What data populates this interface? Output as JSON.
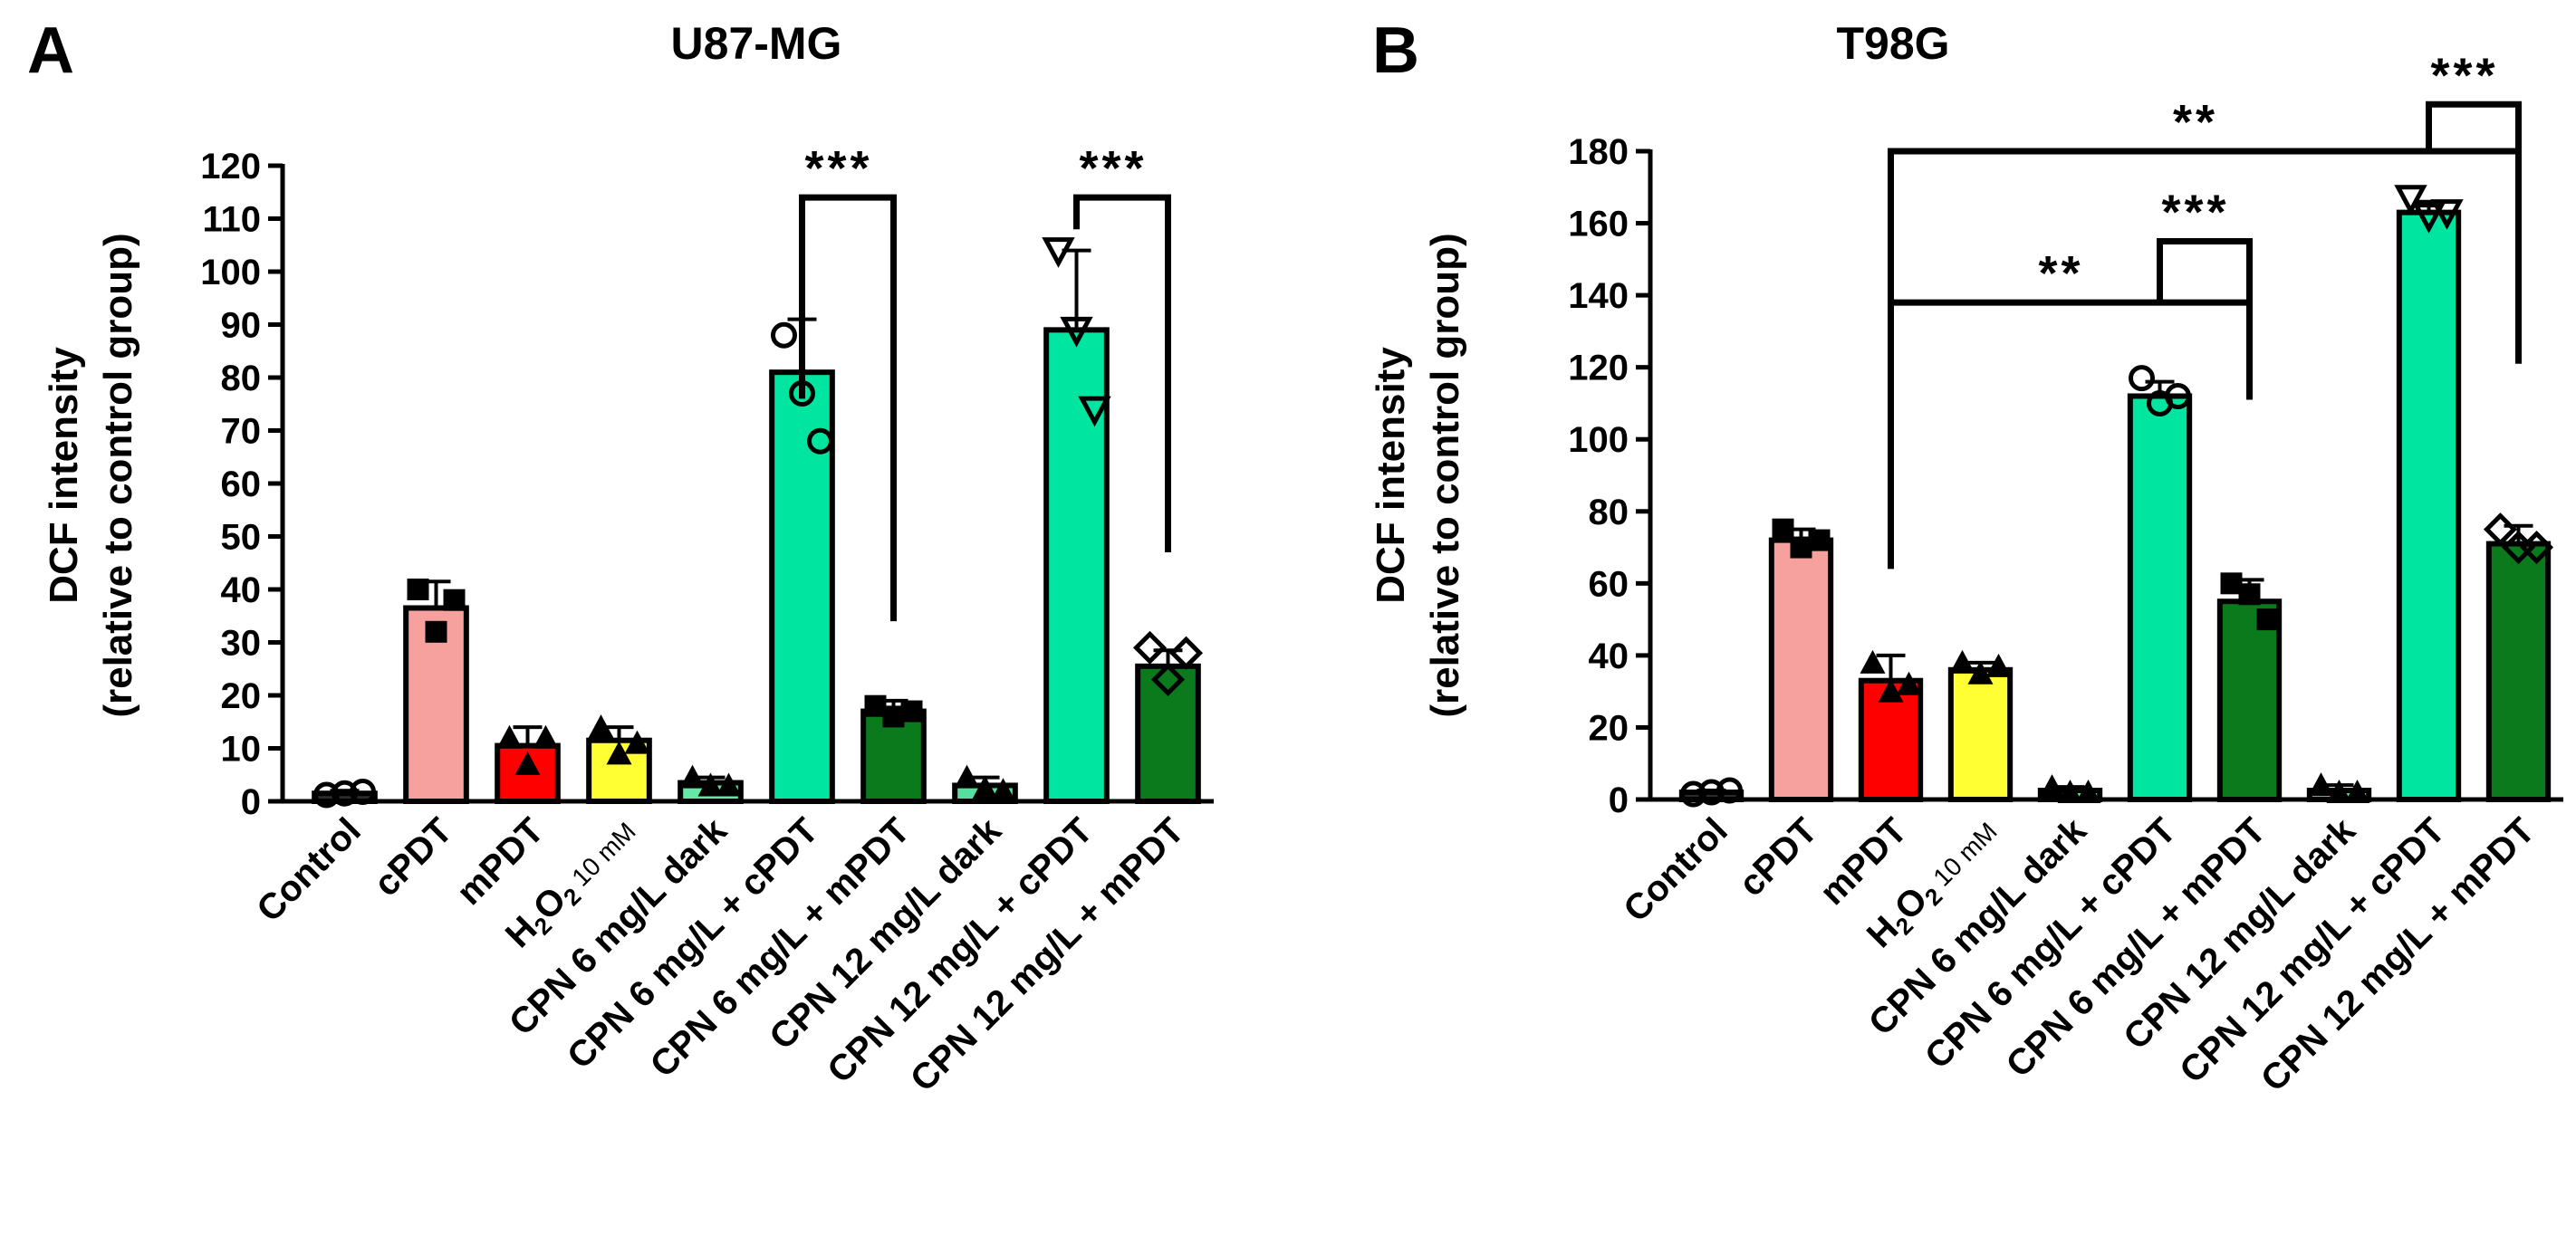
{
  "chart_data": [
    {
      "panel": "A",
      "type": "bar",
      "title": "U87-MG",
      "ylabel_line1": "DCF intensity",
      "ylabel_line2": "(relative to control group)",
      "ylim": [
        0,
        120
      ],
      "yticks": [
        0,
        10,
        20,
        30,
        40,
        50,
        60,
        70,
        80,
        90,
        100,
        110,
        120
      ],
      "categories": [
        "Control",
        "cPDT",
        "mPDT",
        "H2O2 10 mM",
        "CPN 6 mg/L dark",
        "CPN 6 mg/L + cPDT",
        "CPN 6 mg/L + mPDT",
        "CPN 12 mg/L dark",
        "CPN 12 mg/L + cPDT",
        "CPN 12 mg/L + mPDT"
      ],
      "values": [
        1.5,
        36.5,
        10.5,
        11.5,
        3.5,
        81,
        17,
        3,
        89,
        25.5
      ],
      "errors": [
        0.5,
        5,
        3.5,
        2.5,
        1,
        10,
        2,
        1.5,
        15,
        3
      ],
      "points": [
        [
          1.2,
          1.5,
          1.8
        ],
        [
          40,
          32,
          38
        ],
        [
          12,
          7,
          12
        ],
        [
          14,
          9,
          11
        ],
        [
          4.5,
          3,
          3
        ],
        [
          88,
          77,
          68
        ],
        [
          18,
          16,
          17
        ],
        [
          4.5,
          2.5,
          2
        ],
        [
          104,
          89,
          74
        ],
        [
          29,
          23,
          28
        ]
      ],
      "markers": [
        "circle",
        "square",
        "triangle",
        "triangle",
        "triangle",
        "circle",
        "square",
        "triangle",
        "tri-down",
        "diamond"
      ],
      "colors": [
        "#2c2c2c",
        "#f7a19f",
        "#ff0000",
        "#ffff33",
        "#66e8a5",
        "#00e6a1",
        "#0b7a1c",
        "#55e0a0",
        "#00e6a1",
        "#0b7a1c"
      ],
      "annotations": [
        {
          "label": "***",
          "from": 5,
          "to": 6,
          "left_y": 76,
          "right_y": 34,
          "top": 114
        },
        {
          "label": "***",
          "from": 8,
          "to": 9,
          "left_y": 108,
          "right_y": 47,
          "top": 114
        }
      ]
    },
    {
      "panel": "B",
      "type": "bar",
      "title": "T98G",
      "ylabel_line1": "DCF intensity",
      "ylabel_line2": "(relative to control group)",
      "ylim": [
        0,
        180
      ],
      "yticks": [
        0,
        20,
        40,
        60,
        80,
        100,
        120,
        140,
        160,
        180
      ],
      "categories": [
        "Control",
        "cPDT",
        "mPDT",
        "H2O2 10 mM",
        "CPN 6 mg/L dark",
        "CPN 6 mg/L + cPDT",
        "CPN 6 mg/L + mPDT",
        "CPN 12 mg/L dark",
        "CPN 12 mg/L + cPDT",
        "CPN 12 mg/L + mPDT"
      ],
      "values": [
        2,
        72,
        33,
        36,
        2.5,
        112,
        55,
        2.5,
        163,
        71
      ],
      "errors": [
        0.5,
        3,
        7,
        2,
        1,
        4,
        6,
        1.5,
        3,
        5
      ],
      "points": [
        [
          1.5,
          2,
          2.5
        ],
        [
          75,
          70,
          72
        ],
        [
          38,
          30,
          32
        ],
        [
          38,
          35,
          37
        ],
        [
          3.5,
          2,
          2
        ],
        [
          117,
          110,
          112
        ],
        [
          60,
          57,
          50
        ],
        [
          4,
          2,
          2
        ],
        [
          167,
          162,
          163
        ],
        [
          75,
          70,
          70
        ]
      ],
      "markers": [
        "circle",
        "square",
        "triangle",
        "triangle",
        "triangle",
        "circle",
        "square",
        "triangle",
        "tri-down",
        "diamond"
      ],
      "colors": [
        "#2c2c2c",
        "#f7a19f",
        "#ff0000",
        "#ffff33",
        "#66e8a5",
        "#00e6a1",
        "#0b7a1c",
        "#55e0a0",
        "#00e6a1",
        "#0b7a1c"
      ],
      "annotations": [
        {
          "label": "***",
          "from": 5,
          "to": 6,
          "left_y": 138,
          "right_y": 111,
          "top": 155
        },
        {
          "label": "**",
          "from": 2,
          "to": 6,
          "left_y": 120,
          "right_y": 120,
          "top": 138
        },
        {
          "label": "***",
          "from": 8,
          "to": 9,
          "left_y": 180,
          "right_y": 121,
          "top": 193
        },
        {
          "label": "**",
          "from": 2,
          "to": 9,
          "left_y": 64,
          "right_y": 180,
          "top": 180
        }
      ]
    }
  ]
}
